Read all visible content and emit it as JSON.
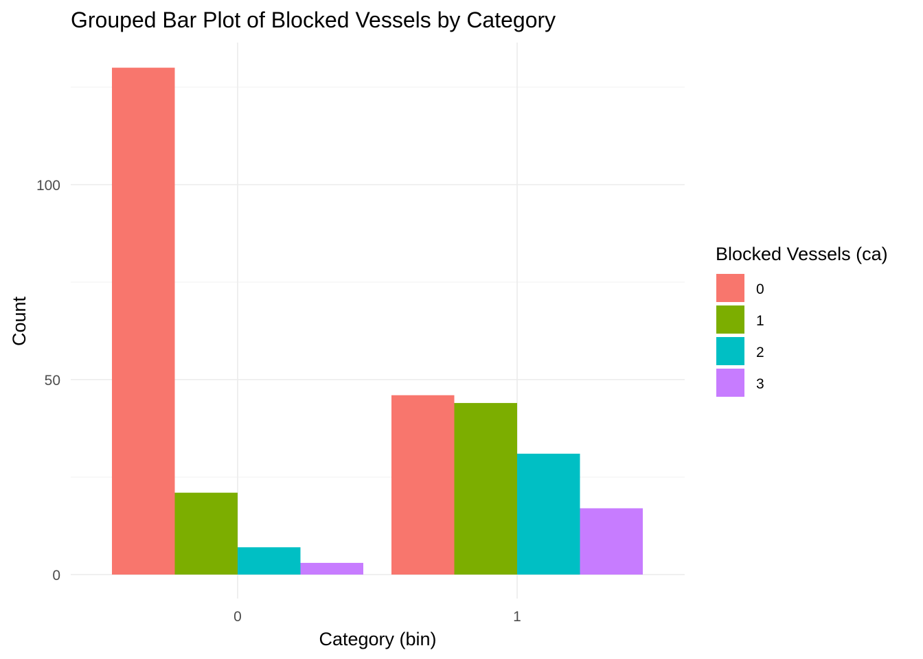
{
  "chart_data": {
    "type": "bar",
    "title": "Grouped Bar Plot of Blocked Vessels by Category",
    "xlabel": "Category (bin)",
    "ylabel": "Count",
    "categories": [
      "0",
      "1"
    ],
    "series": [
      {
        "name": "0",
        "values": [
          130,
          46
        ],
        "color": "#F8766D"
      },
      {
        "name": "1",
        "values": [
          21,
          44
        ],
        "color": "#7CAE00"
      },
      {
        "name": "2",
        "values": [
          7,
          31
        ],
        "color": "#00BFC4"
      },
      {
        "name": "3",
        "values": [
          3,
          17
        ],
        "color": "#C77CFF"
      }
    ],
    "ylim": [
      0,
      130
    ],
    "yticks": [
      0,
      50,
      100
    ],
    "y_minor_ticks": [
      25,
      75,
      125
    ],
    "yticks_labels": [
      "0",
      "50",
      "100"
    ],
    "legend": {
      "title": "Blocked Vessels (ca)",
      "position": "right"
    },
    "grid": true
  }
}
